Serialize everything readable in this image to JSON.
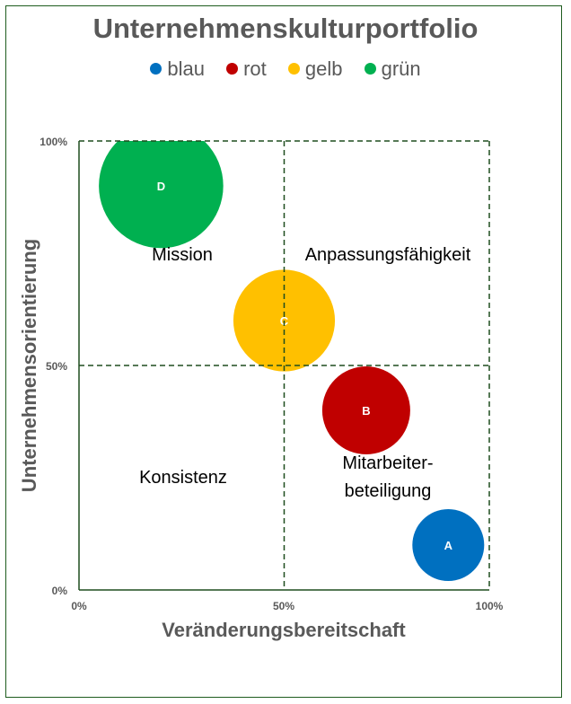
{
  "chart_data": {
    "type": "bubble",
    "title": "Unternehmenskulturportfolio",
    "xlabel": "Veränderungsbereitschaft",
    "ylabel": "Unternehmensorientierung",
    "xlim": [
      0,
      100
    ],
    "ylim": [
      0,
      100
    ],
    "x_ticks": [
      "0%",
      "50%",
      "100%"
    ],
    "y_ticks": [
      "0%",
      "50%",
      "100%"
    ],
    "legend_position": "top",
    "series": [
      {
        "name": "blau",
        "label": "A",
        "x": 90,
        "y": 10,
        "size": 1,
        "color": "#0070C0"
      },
      {
        "name": "rot",
        "label": "B",
        "x": 70,
        "y": 40,
        "size": 1.5,
        "color": "#C00000"
      },
      {
        "name": "gelb",
        "label": "C",
        "x": 50,
        "y": 60,
        "size": 2,
        "color": "#FFC000"
      },
      {
        "name": "grün",
        "label": "D",
        "x": 20,
        "y": 90,
        "size": 3,
        "color": "#00B050"
      }
    ],
    "quadrant_labels": {
      "top_left": "Mission",
      "top_right": "Anpassungsfähigkeit",
      "bottom_left": "Konsistenz",
      "bottom_right_line1": "Mitarbeiter-",
      "bottom_right_line2": "beteiligung"
    },
    "grid_color": "#1e4d1e"
  }
}
